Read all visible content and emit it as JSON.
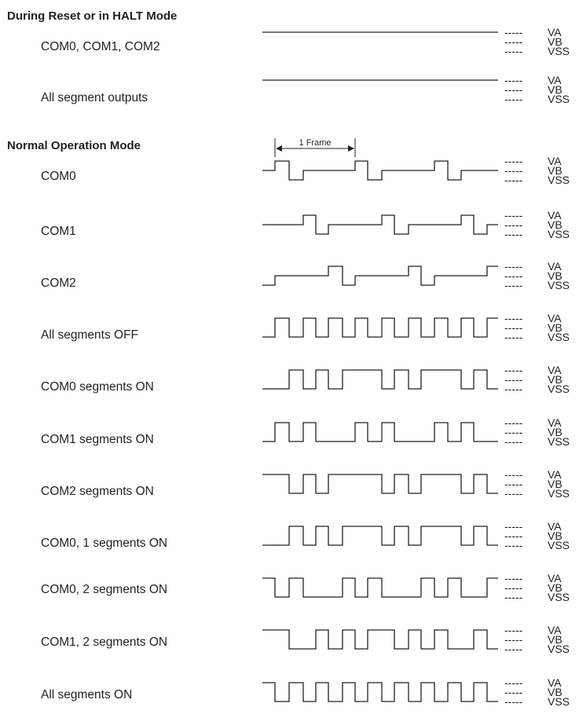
{
  "sections": {
    "reset": {
      "heading": "During Reset or in HALT Mode"
    },
    "normal": {
      "heading": "Normal Operation Mode",
      "frame_label": "1 Frame"
    }
  },
  "levels": [
    "VA",
    "VB",
    "VSS"
  ],
  "dash": "-----",
  "rows": [
    {
      "id": "reset-com",
      "label": "COM0, COM1, COM2",
      "signal": "flat_VA"
    },
    {
      "id": "reset-seg",
      "label": "All segment outputs",
      "signal": "flat_VA"
    },
    {
      "id": "com0",
      "label": "COM0",
      "signal": "COM0"
    },
    {
      "id": "com1",
      "label": "COM1",
      "signal": "COM1"
    },
    {
      "id": "com2",
      "label": "COM2",
      "signal": "COM2"
    },
    {
      "id": "seg-off",
      "label": "All segments OFF",
      "signal": "SEG_OFF"
    },
    {
      "id": "seg-com0-on",
      "label": "COM0 segments ON",
      "signal": "SEG_C0"
    },
    {
      "id": "seg-com1-on",
      "label": "COM1 segments ON",
      "signal": "SEG_C1"
    },
    {
      "id": "seg-com2-on",
      "label": "COM2 segments ON",
      "signal": "SEG_C2"
    },
    {
      "id": "seg-com01-on",
      "label": "COM0, 1 segments ON",
      "signal": "SEG_C01"
    },
    {
      "id": "seg-com02-on",
      "label": "COM0, 2 segments ON",
      "signal": "SEG_C02"
    },
    {
      "id": "seg-com12-on",
      "label": "COM1, 2 segments ON",
      "signal": "SEG_C12"
    },
    {
      "id": "seg-all-on",
      "label": "All segments ON",
      "signal": "SEG_ALL"
    }
  ]
}
